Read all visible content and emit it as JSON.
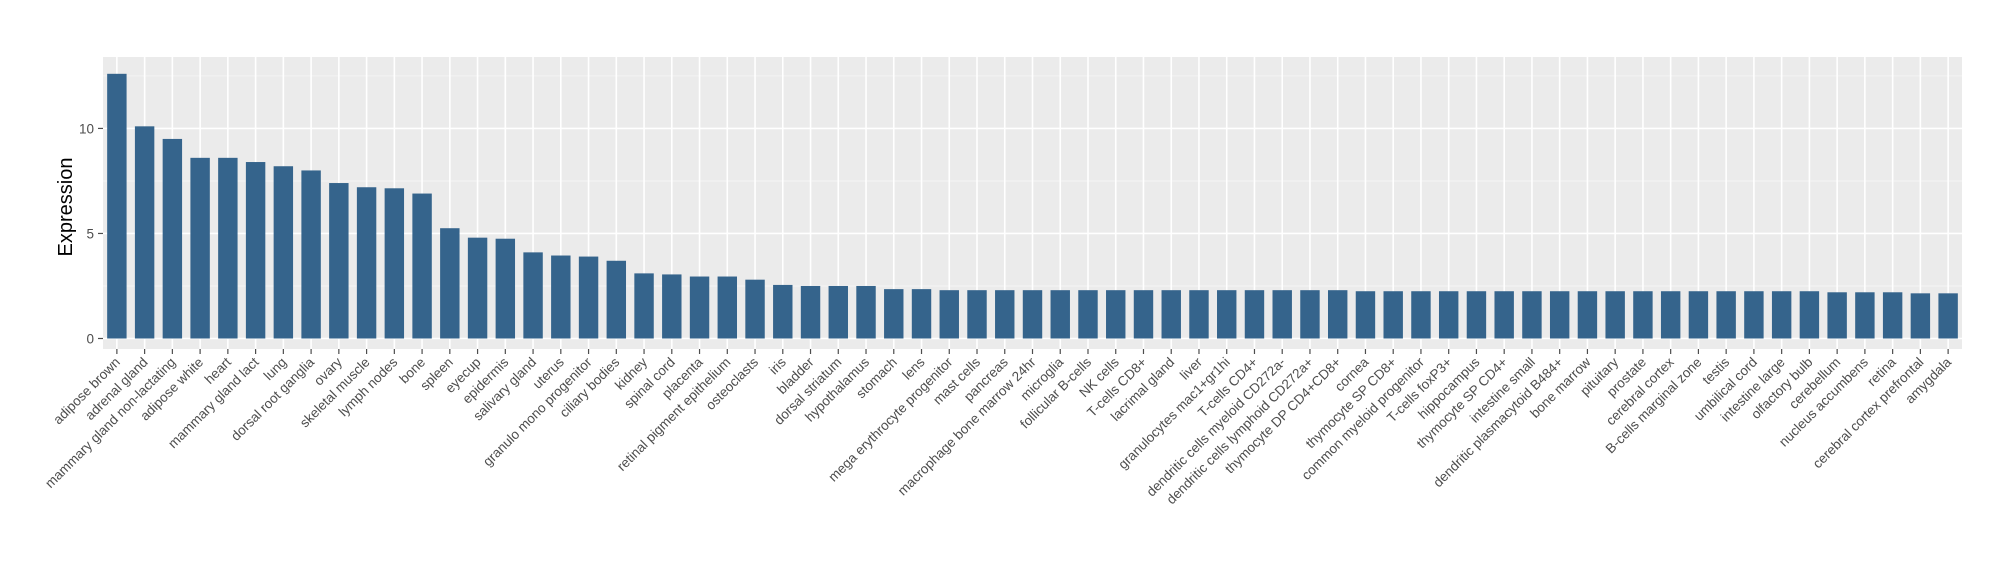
{
  "colors": {
    "bar": "#35648c",
    "panel": "#ebebeb",
    "grid_major": "#ffffff",
    "grid_minor": "#f4f4f4",
    "tick": "#4d4d4d"
  },
  "chart_data": {
    "type": "bar",
    "title": "",
    "xlabel": "",
    "ylabel": "Expression",
    "ylim": [
      -0.5,
      13.4
    ],
    "yticks": [
      0,
      5,
      10
    ],
    "grid": true,
    "legend": "none",
    "categories": [
      "adipose brown",
      "adrenal gland",
      "mammary gland non-lactating",
      "adipose white",
      "heart",
      "mammary gland lact",
      "lung",
      "dorsal root ganglia",
      "ovary",
      "skeletal muscle",
      "lymph nodes",
      "bone",
      "spleen",
      "eyecup",
      "epidermis",
      "salivary gland",
      "uterus",
      "granulo mono progenitor",
      "ciliary bodies",
      "kidney",
      "spinal cord",
      "placenta",
      "retinal pigment epithelium",
      "osteoclasts",
      "iris",
      "bladder",
      "dorsal striatum",
      "hypothalamus",
      "stomach",
      "lens",
      "mega erythrocyte progenitor",
      "mast cells",
      "pancreas",
      "macrophage bone marrow 24hr",
      "microglia",
      "follicular B-cells",
      "NK cells",
      "T-cells CD8+",
      "lacrimal gland",
      "liver",
      "granulocytes mac1+gr1hi",
      "T-cells CD4+",
      "dendritic cells myeloid CD272a-",
      "dendritic cells lymphoid CD272a+",
      "thymocyte DP CD4+CD8+",
      "cornea",
      "thymocyte SP CD8+",
      "common myeloid progenitor",
      "T-cells foxP3+",
      "hippocampus",
      "thymocyte SP CD4+",
      "intestine small",
      "dendritic plasmacytoid B484+",
      "bone marrow",
      "pituitary",
      "prostate",
      "cerebral cortex",
      "B-cells marginal zone",
      "testis",
      "umbilical cord",
      "intestine large",
      "olfactory bulb",
      "cerebellum",
      "nucleus accumbens",
      "retina",
      "cerebral cortex prefrontal",
      "amygdala"
    ],
    "series": [
      {
        "values": [
          12.6,
          10.1,
          9.5,
          8.6,
          8.6,
          8.4,
          8.2,
          8.0,
          7.4,
          7.2,
          7.15,
          6.9,
          5.25,
          4.8,
          4.75,
          4.1,
          3.95,
          3.9,
          3.7,
          3.1,
          3.05,
          2.95,
          2.95,
          2.8,
          2.55,
          2.5,
          2.5,
          2.5,
          2.35,
          2.35,
          2.3,
          2.3,
          2.3,
          2.3,
          2.3,
          2.3,
          2.3,
          2.3,
          2.3,
          2.3,
          2.3,
          2.3,
          2.3,
          2.3,
          2.3,
          2.25,
          2.25,
          2.25,
          2.25,
          2.25,
          2.25,
          2.25,
          2.25,
          2.25,
          2.25,
          2.25,
          2.25,
          2.25,
          2.25,
          2.25,
          2.25,
          2.25,
          2.2,
          2.2,
          2.2,
          2.15,
          2.15
        ]
      }
    ]
  }
}
